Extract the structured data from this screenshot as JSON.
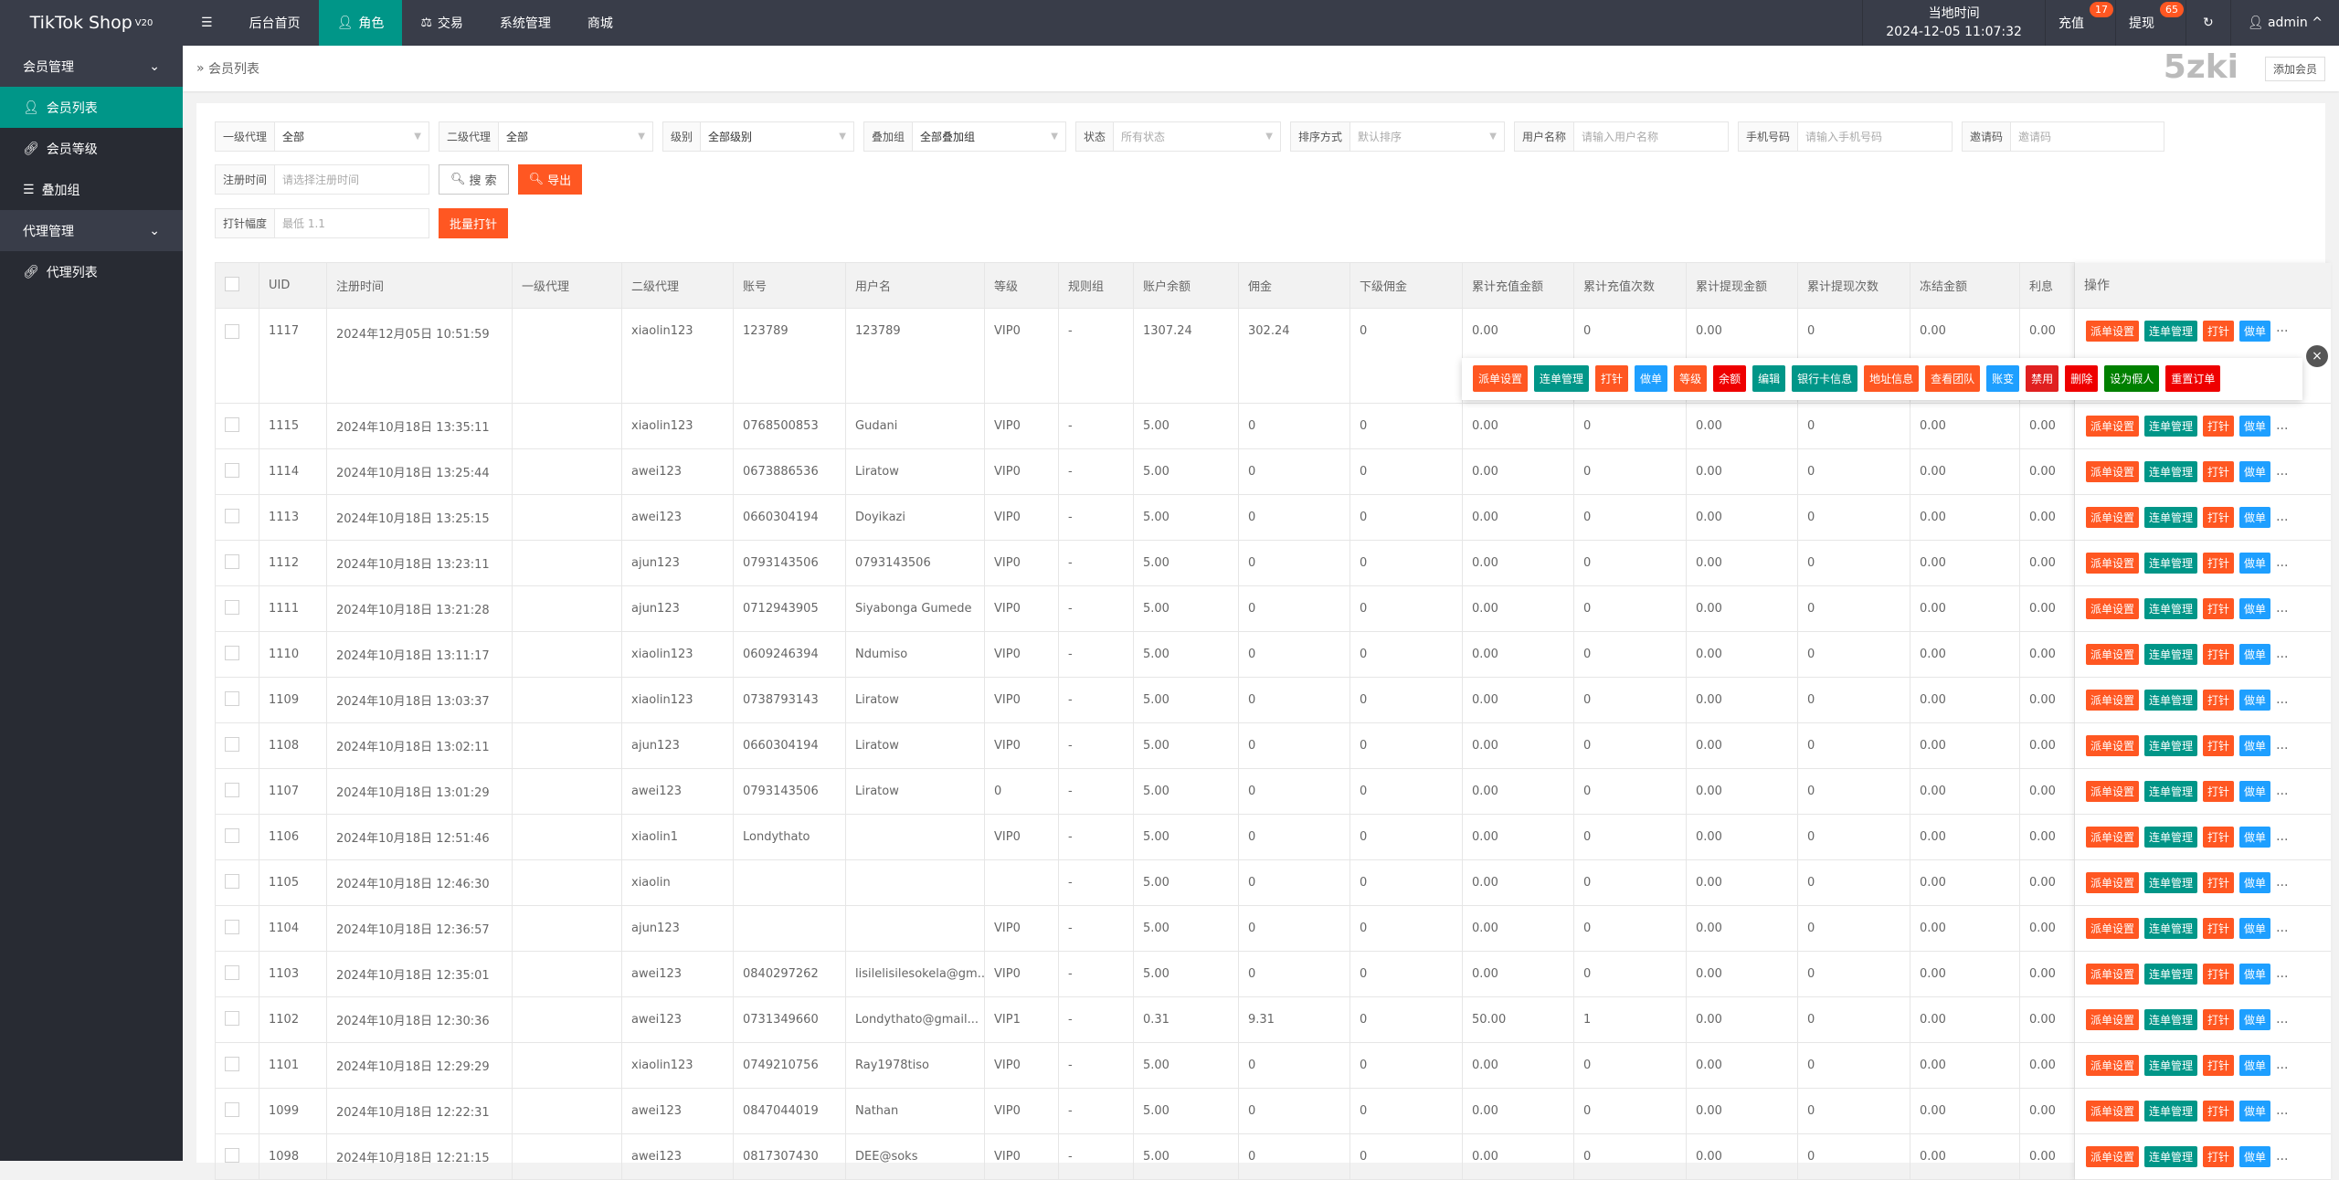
{
  "app": {
    "title": "TikTok Shop",
    "version": "V20",
    "watermark": "5zki"
  },
  "topnav": {
    "items": [
      {
        "label": "后台首页"
      },
      {
        "label": "角色",
        "icon": "user-icon",
        "active": true
      },
      {
        "label": "交易",
        "icon": "scale-icon"
      },
      {
        "label": "系统管理"
      },
      {
        "label": "商城"
      }
    ],
    "clock_label": "当地时间",
    "clock_value": "2024-12-05 11:07:32",
    "recharge": "充值",
    "recharge_badge": "17",
    "withdraw": "提现",
    "withdraw_badge": "65",
    "user": "admin"
  },
  "sidebar": {
    "groups": [
      {
        "label": "会员管理",
        "items": [
          {
            "label": "会员列表",
            "active": true
          },
          {
            "label": "会员等级"
          },
          {
            "label": "叠加组"
          }
        ]
      },
      {
        "label": "代理管理",
        "items": [
          {
            "label": "代理列表"
          }
        ]
      }
    ]
  },
  "breadcrumb": "会员列表",
  "add_member": "添加会员",
  "filters": {
    "agent1": {
      "label": "一级代理",
      "value": "全部"
    },
    "agent2": {
      "label": "二级代理",
      "value": "全部"
    },
    "level": {
      "label": "级别",
      "value": "全部级别"
    },
    "group": {
      "label": "叠加组",
      "value": "全部叠加组"
    },
    "status": {
      "label": "状态",
      "placeholder": "所有状态"
    },
    "sort": {
      "label": "排序方式",
      "placeholder": "默认排序"
    },
    "username": {
      "label": "用户名称",
      "placeholder": "请输入用户名称"
    },
    "phone": {
      "label": "手机号码",
      "placeholder": "请输入手机号码"
    },
    "invite": {
      "label": "邀请码",
      "placeholder": "邀请码"
    },
    "regtime": {
      "label": "注册时间",
      "placeholder": "请选择注册时间"
    },
    "search": "搜 索",
    "export": "导出",
    "inject": {
      "label": "打针幅度",
      "placeholder": "最低 1.1"
    },
    "batch": "批量打针"
  },
  "table": {
    "headers": [
      "UID",
      "注册时间",
      "一级代理",
      "二级代理",
      "账号",
      "用户名",
      "等级",
      "规则组",
      "账户余额",
      "佣金",
      "下级佣金",
      "累计充值金额",
      "累计充值次数",
      "累计提现金额",
      "累计提现次数",
      "冻结金额",
      "利息"
    ],
    "ops_header": "操作",
    "rows": [
      [
        "1117",
        "2024年12月05日 10:51:59",
        "",
        "xiaolin123",
        "123789",
        "123789",
        "VIP0",
        "-",
        "1307.24",
        "302.24",
        "0",
        "0.00",
        "0",
        "0.00",
        "0",
        "0.00",
        "0.00"
      ],
      [
        "1115",
        "2024年10月18日 13:35:11",
        "",
        "xiaolin123",
        "0768500853",
        "Gudani",
        "VIP0",
        "-",
        "5.00",
        "0",
        "0",
        "0.00",
        "0",
        "0.00",
        "0",
        "0.00",
        "0.00"
      ],
      [
        "1114",
        "2024年10月18日 13:25:44",
        "",
        "awei123",
        "0673886536",
        "Liratow",
        "VIP0",
        "-",
        "5.00",
        "0",
        "0",
        "0.00",
        "0",
        "0.00",
        "0",
        "0.00",
        "0.00"
      ],
      [
        "1113",
        "2024年10月18日 13:25:15",
        "",
        "awei123",
        "0660304194",
        "Doyikazi",
        "VIP0",
        "-",
        "5.00",
        "0",
        "0",
        "0.00",
        "0",
        "0.00",
        "0",
        "0.00",
        "0.00"
      ],
      [
        "1112",
        "2024年10月18日 13:23:11",
        "",
        "ajun123",
        "0793143506",
        "0793143506",
        "VIP0",
        "-",
        "5.00",
        "0",
        "0",
        "0.00",
        "0",
        "0.00",
        "0",
        "0.00",
        "0.00"
      ],
      [
        "1111",
        "2024年10月18日 13:21:28",
        "",
        "ajun123",
        "0712943905",
        "Siyabonga Gumede",
        "VIP0",
        "-",
        "5.00",
        "0",
        "0",
        "0.00",
        "0",
        "0.00",
        "0",
        "0.00",
        "0.00"
      ],
      [
        "1110",
        "2024年10月18日 13:11:17",
        "",
        "xiaolin123",
        "0609246394",
        "Ndumiso",
        "VIP0",
        "-",
        "5.00",
        "0",
        "0",
        "0.00",
        "0",
        "0.00",
        "0",
        "0.00",
        "0.00"
      ],
      [
        "1109",
        "2024年10月18日 13:03:37",
        "",
        "xiaolin123",
        "0738793143",
        "Liratow",
        "VIP0",
        "-",
        "5.00",
        "0",
        "0",
        "0.00",
        "0",
        "0.00",
        "0",
        "0.00",
        "0.00"
      ],
      [
        "1108",
        "2024年10月18日 13:02:11",
        "",
        "ajun123",
        "0660304194",
        "Liratow",
        "VIP0",
        "-",
        "5.00",
        "0",
        "0",
        "0.00",
        "0",
        "0.00",
        "0",
        "0.00",
        "0.00"
      ],
      [
        "1107",
        "2024年10月18日 13:01:29",
        "",
        "awei123",
        "0793143506",
        "Liratow",
        "0",
        "-",
        "5.00",
        "0",
        "0",
        "0.00",
        "0",
        "0.00",
        "0",
        "0.00",
        "0.00"
      ],
      [
        "1106",
        "2024年10月18日 12:51:46",
        "",
        "xiaolin1",
        "Londythato",
        "",
        "VIP0",
        "-",
        "5.00",
        "0",
        "0",
        "0.00",
        "0",
        "0.00",
        "0",
        "0.00",
        "0.00"
      ],
      [
        "1105",
        "2024年10月18日 12:46:30",
        "",
        "xiaolin",
        "",
        "",
        "",
        "-",
        "5.00",
        "0",
        "0",
        "0.00",
        "0",
        "0.00",
        "0",
        "0.00",
        "0.00"
      ],
      [
        "1104",
        "2024年10月18日 12:36:57",
        "",
        "ajun123",
        "",
        "",
        "VIP0",
        "-",
        "5.00",
        "0",
        "0",
        "0.00",
        "0",
        "0.00",
        "0",
        "0.00",
        "0.00"
      ],
      [
        "1103",
        "2024年10月18日 12:35:01",
        "",
        "awei123",
        "0840297262",
        "lisilelisilesokela@gm...",
        "VIP0",
        "-",
        "5.00",
        "0",
        "0",
        "0.00",
        "0",
        "0.00",
        "0",
        "0.00",
        "0.00"
      ],
      [
        "1102",
        "2024年10月18日 12:30:36",
        "",
        "awei123",
        "0731349660",
        "Londythato@gmail...",
        "VIP1",
        "-",
        "0.31",
        "9.31",
        "0",
        "50.00",
        "1",
        "0.00",
        "0",
        "0.00",
        "0.00"
      ],
      [
        "1101",
        "2024年10月18日 12:29:29",
        "",
        "xiaolin123",
        "0749210756",
        "Ray1978tiso",
        "VIP0",
        "-",
        "5.00",
        "0",
        "0",
        "0.00",
        "0",
        "0.00",
        "0",
        "0.00",
        "0.00"
      ],
      [
        "1099",
        "2024年10月18日 12:22:31",
        "",
        "awei123",
        "0847044019",
        "Nathan",
        "VIP0",
        "-",
        "5.00",
        "0",
        "0",
        "0.00",
        "0",
        "0.00",
        "0",
        "0.00",
        "0.00"
      ],
      [
        "1098",
        "2024年10月18日 12:21:15",
        "",
        "awei123",
        "0817307430",
        "DEE@soks",
        "VIP0",
        "-",
        "5.00",
        "0",
        "0",
        "0.00",
        "0",
        "0.00",
        "0",
        "0.00",
        "0.00"
      ]
    ],
    "row_actions": [
      {
        "label": "派单设置",
        "color": "#ff5722"
      },
      {
        "label": "连单管理",
        "color": "#009688"
      },
      {
        "label": "打针",
        "color": "#ff5722"
      },
      {
        "label": "做单",
        "color": "#1e9fff"
      }
    ],
    "more": "..."
  },
  "popup": {
    "actions": [
      {
        "label": "派单设置",
        "color": "#ff5722"
      },
      {
        "label": "连单管理",
        "color": "#009688"
      },
      {
        "label": "打针",
        "color": "#ff5722"
      },
      {
        "label": "做单",
        "color": "#1e9fff"
      },
      {
        "label": "等级",
        "color": "#ff5722"
      },
      {
        "label": "余额",
        "color": "#e00"
      },
      {
        "label": "编辑",
        "color": "#009688"
      },
      {
        "label": "银行卡信息",
        "color": "#009688"
      },
      {
        "label": "地址信息",
        "color": "#ff5722"
      },
      {
        "label": "查看团队",
        "color": "#ff5722"
      },
      {
        "label": "账变",
        "color": "#1e9fff"
      },
      {
        "label": "禁用",
        "color": "#e02020"
      },
      {
        "label": "删除",
        "color": "#e00"
      },
      {
        "label": "设为假人",
        "color": "#008000"
      },
      {
        "label": "重置订单",
        "color": "#e00"
      }
    ]
  }
}
